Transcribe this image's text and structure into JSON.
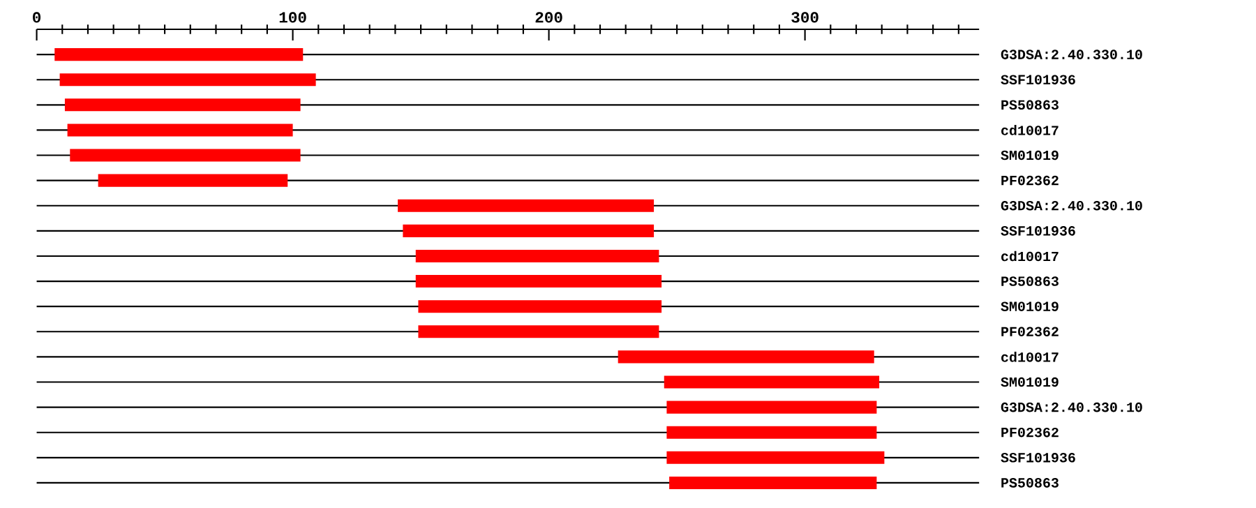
{
  "chart_data": {
    "type": "bar",
    "orientation": "horizontal",
    "categories": [
      "G3DSA:2.40.330.10",
      "SSF101936",
      "PS50863",
      "cd10017",
      "SM01019",
      "PF02362",
      "G3DSA:2.40.330.10",
      "SSF101936",
      "cd10017",
      "PS50863",
      "SM01019",
      "PF02362",
      "cd10017",
      "SM01019",
      "G3DSA:2.40.330.10",
      "PF02362",
      "SSF101936",
      "PS50863"
    ],
    "base": [
      7,
      9,
      11,
      12,
      13,
      24,
      141,
      143,
      148,
      148,
      149,
      149,
      227,
      245,
      246,
      246,
      246,
      247
    ],
    "values": [
      97,
      100,
      92,
      88,
      90,
      74,
      100,
      98,
      95,
      96,
      95,
      94,
      100,
      84,
      82,
      82,
      85,
      81
    ],
    "color": "#ff0000",
    "xlim": [
      0,
      368
    ],
    "xticks": [
      0,
      {
        "value": 10,
        "label": null
      },
      {
        "value": 20,
        "label": null
      },
      {
        "value": 30,
        "label": null
      },
      {
        "value": 40,
        "label": null
      },
      {
        "value": 50,
        "label": null
      },
      {
        "value": 60,
        "label": null
      },
      {
        "value": 70,
        "label": null
      },
      {
        "value": 80,
        "label": null
      },
      {
        "value": 90,
        "label": null
      },
      100,
      {
        "value": 110,
        "label": null
      },
      {
        "value": 120,
        "label": null
      },
      {
        "value": 130,
        "label": null
      },
      {
        "value": 140,
        "label": null
      },
      {
        "value": 150,
        "label": null
      },
      {
        "value": 160,
        "label": null
      },
      {
        "value": 170,
        "label": null
      },
      {
        "value": 180,
        "label": null
      },
      {
        "value": 190,
        "label": null
      },
      200,
      {
        "value": 210,
        "label": null
      },
      {
        "value": 220,
        "label": null
      },
      {
        "value": 230,
        "label": null
      },
      {
        "value": 240,
        "label": null
      },
      {
        "value": 250,
        "label": null
      },
      {
        "value": 260,
        "label": null
      },
      {
        "value": 270,
        "label": null
      },
      {
        "value": 280,
        "label": null
      },
      {
        "value": 290,
        "label": null
      },
      300,
      {
        "value": 310,
        "label": null
      },
      {
        "value": 320,
        "label": null
      },
      {
        "value": 330,
        "label": null
      },
      {
        "value": 340,
        "label": null
      },
      {
        "value": 350,
        "label": null
      },
      {
        "value": 360,
        "label": null
      }
    ],
    "grid": "y"
  }
}
